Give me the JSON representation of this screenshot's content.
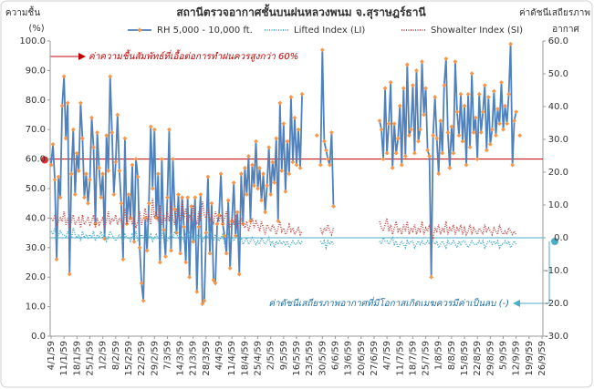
{
  "chart_data": {
    "type": "line",
    "title": "สถานีตรวจอากาศชั้นบนฝนหลวงพนม จ.สุราษฎร์ธานี",
    "y_label": [
      "ความชื้น",
      "(%)"
    ],
    "y2_label": [
      "ค่าดัชนีเสถียรภาพ",
      "อากาศ"
    ],
    "annotations": [
      "ค่าความชื้นสัมพัทธ์ที่เอื้อต่อการทำฝนควรสูงกว่า 60%",
      "ค่าดัชนีเสถียรภาพอากาศที่มีโอกาสเกิดเมฆควรมีค่าเป็นลบ (-)"
    ],
    "hlines": [
      {
        "axis": "y",
        "value": 60,
        "color": "#c00000"
      },
      {
        "axis": "y2",
        "value": 0,
        "color": "#4bacc6"
      }
    ],
    "ylim": [
      0,
      100
    ],
    "yticks": [
      {
        "value": 0,
        "label": "0.0"
      },
      {
        "value": 10,
        "label": "10.0"
      },
      {
        "value": 20,
        "label": "20.0"
      },
      {
        "value": 30,
        "label": "30.0"
      },
      {
        "value": 40,
        "label": "40.0"
      },
      {
        "value": 50,
        "label": "50.0"
      },
      {
        "value": 60,
        "label": "60.0"
      },
      {
        "value": 70,
        "label": "70.0"
      },
      {
        "value": 80,
        "label": "80.0"
      },
      {
        "value": 90,
        "label": "90.0"
      },
      {
        "value": 100,
        "label": "100.0"
      }
    ],
    "y2lim": [
      -30,
      60
    ],
    "y2ticks": [
      {
        "value": -30,
        "label": "-30.0"
      },
      {
        "value": -20,
        "label": "-20.0"
      },
      {
        "value": -10,
        "label": "-10.0"
      },
      {
        "value": 0,
        "label": "0.0"
      },
      {
        "value": 10,
        "label": "10.0"
      },
      {
        "value": 20,
        "label": "20.0"
      },
      {
        "value": 30,
        "label": "30.0"
      },
      {
        "value": 40,
        "label": "40.0"
      },
      {
        "value": 50,
        "label": "50.0"
      },
      {
        "value": 60,
        "label": "60.0"
      }
    ],
    "grid": false,
    "categories": [
      "4/1/59",
      null,
      null,
      null,
      null,
      null,
      null,
      "11/1/59",
      null,
      null,
      null,
      null,
      null,
      null,
      "18/1/59",
      null,
      null,
      null,
      null,
      null,
      null,
      "25/1/59",
      null,
      null,
      null,
      null,
      null,
      null,
      "1/2/59",
      null,
      null,
      null,
      null,
      null,
      null,
      "8/2/59",
      null,
      null,
      null,
      null,
      null,
      null,
      "15/2/59",
      null,
      null,
      null,
      null,
      null,
      null,
      "22/2/59",
      null,
      null,
      null,
      null,
      null,
      null,
      "29/2/59",
      null,
      null,
      null,
      null,
      null,
      null,
      "7/3/59",
      null,
      null,
      null,
      null,
      null,
      null,
      "14/3/59",
      null,
      null,
      null,
      null,
      null,
      null,
      "21/3/59",
      null,
      null,
      null,
      null,
      null,
      null,
      "28/3/59",
      null,
      null,
      null,
      null,
      null,
      null,
      "4/4/59",
      null,
      null,
      null,
      null,
      null,
      null,
      "11/4/59",
      null,
      null,
      null,
      null,
      null,
      null,
      "18/4/59",
      null,
      null,
      null,
      null,
      null,
      null,
      "25/4/59",
      null,
      null,
      null,
      null,
      null,
      null,
      "2/5/59",
      null,
      null,
      null,
      null,
      null,
      null,
      "9/5/59",
      null,
      null,
      null,
      null,
      null,
      null,
      "16/5/59",
      null,
      null,
      null,
      null,
      null,
      null,
      "23/5/59",
      null,
      null,
      null,
      null,
      null,
      null,
      "30/5/59",
      null,
      null,
      null,
      null,
      null,
      null,
      "6/6/59",
      null,
      null,
      null,
      null,
      null,
      null,
      "13/6/59",
      null,
      null,
      null,
      null,
      null,
      null,
      "20/6/59",
      null,
      null,
      null,
      null,
      null,
      null,
      "27/6/59",
      null,
      null,
      null,
      null,
      null,
      null,
      "4/7/59",
      null,
      null,
      null,
      null,
      null,
      null,
      "11/7/59",
      null,
      null,
      null,
      null,
      null,
      null,
      "18/7/59",
      null,
      null,
      null,
      null,
      null,
      null,
      "25/7/59",
      null,
      null,
      null,
      null,
      null,
      null,
      "1/8/59",
      null,
      null,
      null,
      null,
      null,
      null,
      "8/8/59",
      null,
      null,
      null,
      null,
      null,
      null,
      "15/8/59",
      null,
      null,
      null,
      null,
      null,
      null,
      "22/8/59",
      null,
      null,
      null,
      null,
      null,
      null,
      "29/8/59",
      null,
      null,
      null,
      null,
      null,
      null,
      "5/9/59",
      null,
      null,
      null,
      null,
      null,
      null,
      "12/9/59",
      null,
      null,
      null,
      null,
      null,
      null,
      "19/9/59",
      null,
      null,
      null,
      null,
      null,
      null,
      "26/9/59"
    ],
    "series": [
      {
        "name": "RH 5,000 - 10,000 ft.",
        "color": "#4f81bd",
        "marker_color": "#f79646",
        "style": "solid",
        "axis": "y",
        "values": [
          58,
          65,
          53,
          26,
          54,
          47,
          78,
          88,
          67,
          79,
          21,
          55,
          70,
          48,
          62,
          56,
          79,
          67,
          47,
          55,
          45,
          53,
          74,
          64,
          38,
          69,
          57,
          47,
          55,
          33,
          68,
          56,
          88,
          69,
          48,
          59,
          75,
          56,
          45,
          26,
          67,
          38,
          48,
          40,
          58,
          32,
          60,
          54,
          30,
          18,
          12,
          40,
          29,
          45,
          71,
          50,
          70,
          40,
          55,
          25,
          60,
          36,
          27,
          47,
          70,
          29,
          60,
          43,
          35,
          48,
          28,
          47,
          37,
          25,
          47,
          20,
          44,
          32,
          47,
          15,
          37,
          48,
          11,
          12,
          35,
          54,
          28,
          45,
          19,
          18,
          38,
          41,
          55,
          38,
          34,
          28,
          46,
          23,
          39,
          52,
          34,
          42,
          21,
          55,
          38,
          57,
          48,
          61,
          39,
          58,
          51,
          66,
          50,
          57,
          46,
          55,
          42,
          51,
          64,
          48,
          59,
          52,
          67,
          39,
          79,
          56,
          72,
          49,
          66,
          55,
          81,
          59,
          74,
          58,
          70,
          57,
          82,
          null,
          null,
          null,
          null,
          null,
          null,
          null,
          68,
          null,
          58,
          97,
          66,
          63,
          60,
          58,
          69,
          44,
          null,
          null,
          null,
          null,
          null,
          null,
          null,
          null,
          null,
          null,
          null,
          null,
          null,
          null,
          null,
          null,
          null,
          null,
          null,
          null,
          null,
          null,
          null,
          null,
          73,
          70,
          60,
          84,
          62,
          72,
          86,
          57,
          72,
          62,
          67,
          78,
          58,
          84,
          61,
          92,
          68,
          70,
          85,
          62,
          90,
          66,
          70,
          93,
          75,
          84,
          63,
          61,
          20,
          68,
          81,
          67,
          55,
          73,
          62,
          85,
          94,
          69,
          57,
          71,
          62,
          93,
          76,
          68,
          82,
          66,
          78,
          58,
          82,
          64,
          89,
          69,
          74,
          60,
          82,
          69,
          76,
          85,
          63,
          81,
          65,
          70,
          83,
          68,
          77,
          72,
          86,
          70,
          78,
          72,
          82,
          99,
          58,
          73,
          76,
          null,
          68,
          null,
          null,
          null,
          null,
          null,
          null,
          null,
          null,
          null,
          null,
          null,
          null
        ]
      },
      {
        "name": "Lifted Index (LI)",
        "color": "#4bacc6",
        "style": "dotted",
        "axis": "y2",
        "values": [
          2,
          1,
          3,
          0,
          1,
          2,
          1,
          1,
          0,
          2,
          1,
          0,
          3,
          1,
          0,
          1,
          -1,
          2,
          0,
          1,
          0,
          1,
          0,
          2,
          -1,
          1,
          0,
          2,
          0,
          1,
          -1,
          0,
          2,
          1,
          0,
          -1,
          0,
          1,
          0,
          -1,
          1,
          0,
          0,
          -1,
          1,
          0,
          2,
          -1,
          0,
          1,
          0,
          -1,
          2,
          0,
          1,
          -1,
          0,
          1,
          0,
          -1,
          1,
          2,
          0,
          -1,
          0,
          1,
          0,
          2,
          1,
          0,
          1,
          0,
          -1,
          1,
          0,
          2,
          1,
          0,
          -1,
          1,
          0,
          1,
          -1,
          0,
          1,
          0,
          2,
          0,
          -1,
          1,
          0,
          -1,
          0,
          1,
          -2,
          0,
          1,
          -1,
          0,
          -1,
          0,
          1,
          -1,
          0,
          -2,
          -1,
          0,
          -2,
          -1,
          0,
          -1,
          -2,
          -1,
          -2,
          0,
          -1,
          -2,
          -1,
          0,
          -2,
          -1,
          -3,
          -1,
          -2,
          -1,
          -2,
          -1,
          -2,
          -1,
          -3,
          -2,
          -1,
          -2,
          -2,
          -1,
          -2,
          -1,
          null,
          null,
          null,
          null,
          null,
          null,
          null,
          -2,
          null,
          -1,
          -2,
          -1,
          -3,
          -1,
          -2,
          -1,
          -2,
          null,
          null,
          null,
          null,
          null,
          null,
          null,
          null,
          null,
          null,
          null,
          null,
          null,
          null,
          null,
          null,
          null,
          null,
          null,
          null,
          null,
          null,
          null,
          null,
          -1,
          -2,
          0,
          -1,
          -1,
          -2,
          -1,
          0,
          -2,
          -1,
          -3,
          -2,
          -1,
          -2,
          -3,
          -1,
          -2,
          -1,
          -1,
          -3,
          -2,
          -1,
          -2,
          -1,
          -2,
          -2,
          -1,
          -2,
          1,
          -1,
          -2,
          -1,
          -3,
          -2,
          -1,
          -2,
          -3,
          -1,
          -2,
          -2,
          -1,
          -2,
          -3,
          -1,
          -2,
          -1,
          -1,
          -2,
          -3,
          -2,
          -1,
          -2,
          -2,
          -2,
          -1,
          -2,
          -1,
          -3,
          -2,
          -1,
          -1,
          -2,
          -1,
          -2,
          -1,
          -3,
          -2,
          -2,
          -1,
          -2,
          -1,
          -3,
          -2,
          -1,
          -2,
          null,
          -1,
          null,
          null,
          null,
          null,
          null,
          null,
          null,
          null,
          null,
          null,
          null,
          null
        ]
      },
      {
        "name": "Showalter Index (SI)",
        "color": "#c0504d",
        "style": "dotted",
        "axis": "y2",
        "values": [
          6,
          5,
          7,
          4,
          5,
          6,
          5,
          8,
          4,
          6,
          3,
          5,
          7,
          4,
          5,
          6,
          3,
          7,
          4,
          5,
          6,
          4,
          5,
          7,
          3,
          6,
          4,
          5,
          6,
          3,
          5,
          8,
          4,
          6,
          5,
          7,
          4,
          6,
          5,
          3,
          9,
          4,
          5,
          7,
          4,
          6,
          3,
          5,
          8,
          4,
          6,
          9,
          5,
          7,
          4,
          12,
          6,
          8,
          5,
          10,
          4,
          7,
          5,
          8,
          5,
          11,
          6,
          4,
          9,
          7,
          5,
          12,
          6,
          9,
          4,
          7,
          5,
          10,
          6,
          4,
          8,
          5,
          11,
          7,
          6,
          9,
          5,
          7,
          4,
          8,
          6,
          5,
          7,
          4,
          6,
          8,
          5,
          3,
          6,
          4,
          7,
          3,
          5,
          6,
          4,
          3,
          5,
          2,
          4,
          6,
          3,
          5,
          4,
          2,
          5,
          3,
          1,
          4,
          3,
          2,
          4,
          3,
          1,
          3,
          5,
          2,
          3,
          1,
          2,
          4,
          2,
          3,
          1,
          2,
          3,
          1,
          2,
          null,
          null,
          null,
          null,
          null,
          null,
          null,
          2,
          null,
          3,
          1,
          3,
          2,
          4,
          2,
          1,
          3,
          null,
          null,
          null,
          null,
          null,
          null,
          null,
          null,
          null,
          null,
          null,
          null,
          null,
          null,
          null,
          null,
          null,
          null,
          null,
          null,
          null,
          null,
          null,
          null,
          5,
          3,
          2,
          4,
          6,
          2,
          4,
          1,
          3,
          5,
          2,
          3,
          1,
          4,
          2,
          5,
          1,
          3,
          2,
          4,
          1,
          3,
          2,
          5,
          1,
          3,
          2,
          4,
          1,
          0,
          3,
          2,
          4,
          1,
          3,
          2,
          5,
          1,
          3,
          2,
          4,
          1,
          3,
          2,
          4,
          1,
          3,
          1,
          2,
          4,
          1,
          3,
          2,
          1,
          3,
          2,
          1,
          4,
          2,
          3,
          2,
          1,
          3,
          2,
          1,
          4,
          2,
          1,
          2,
          1,
          3,
          2,
          1,
          2,
          1,
          null,
          2,
          null,
          null,
          null,
          null,
          null,
          null,
          null,
          null,
          null,
          null,
          null,
          null
        ]
      }
    ]
  }
}
